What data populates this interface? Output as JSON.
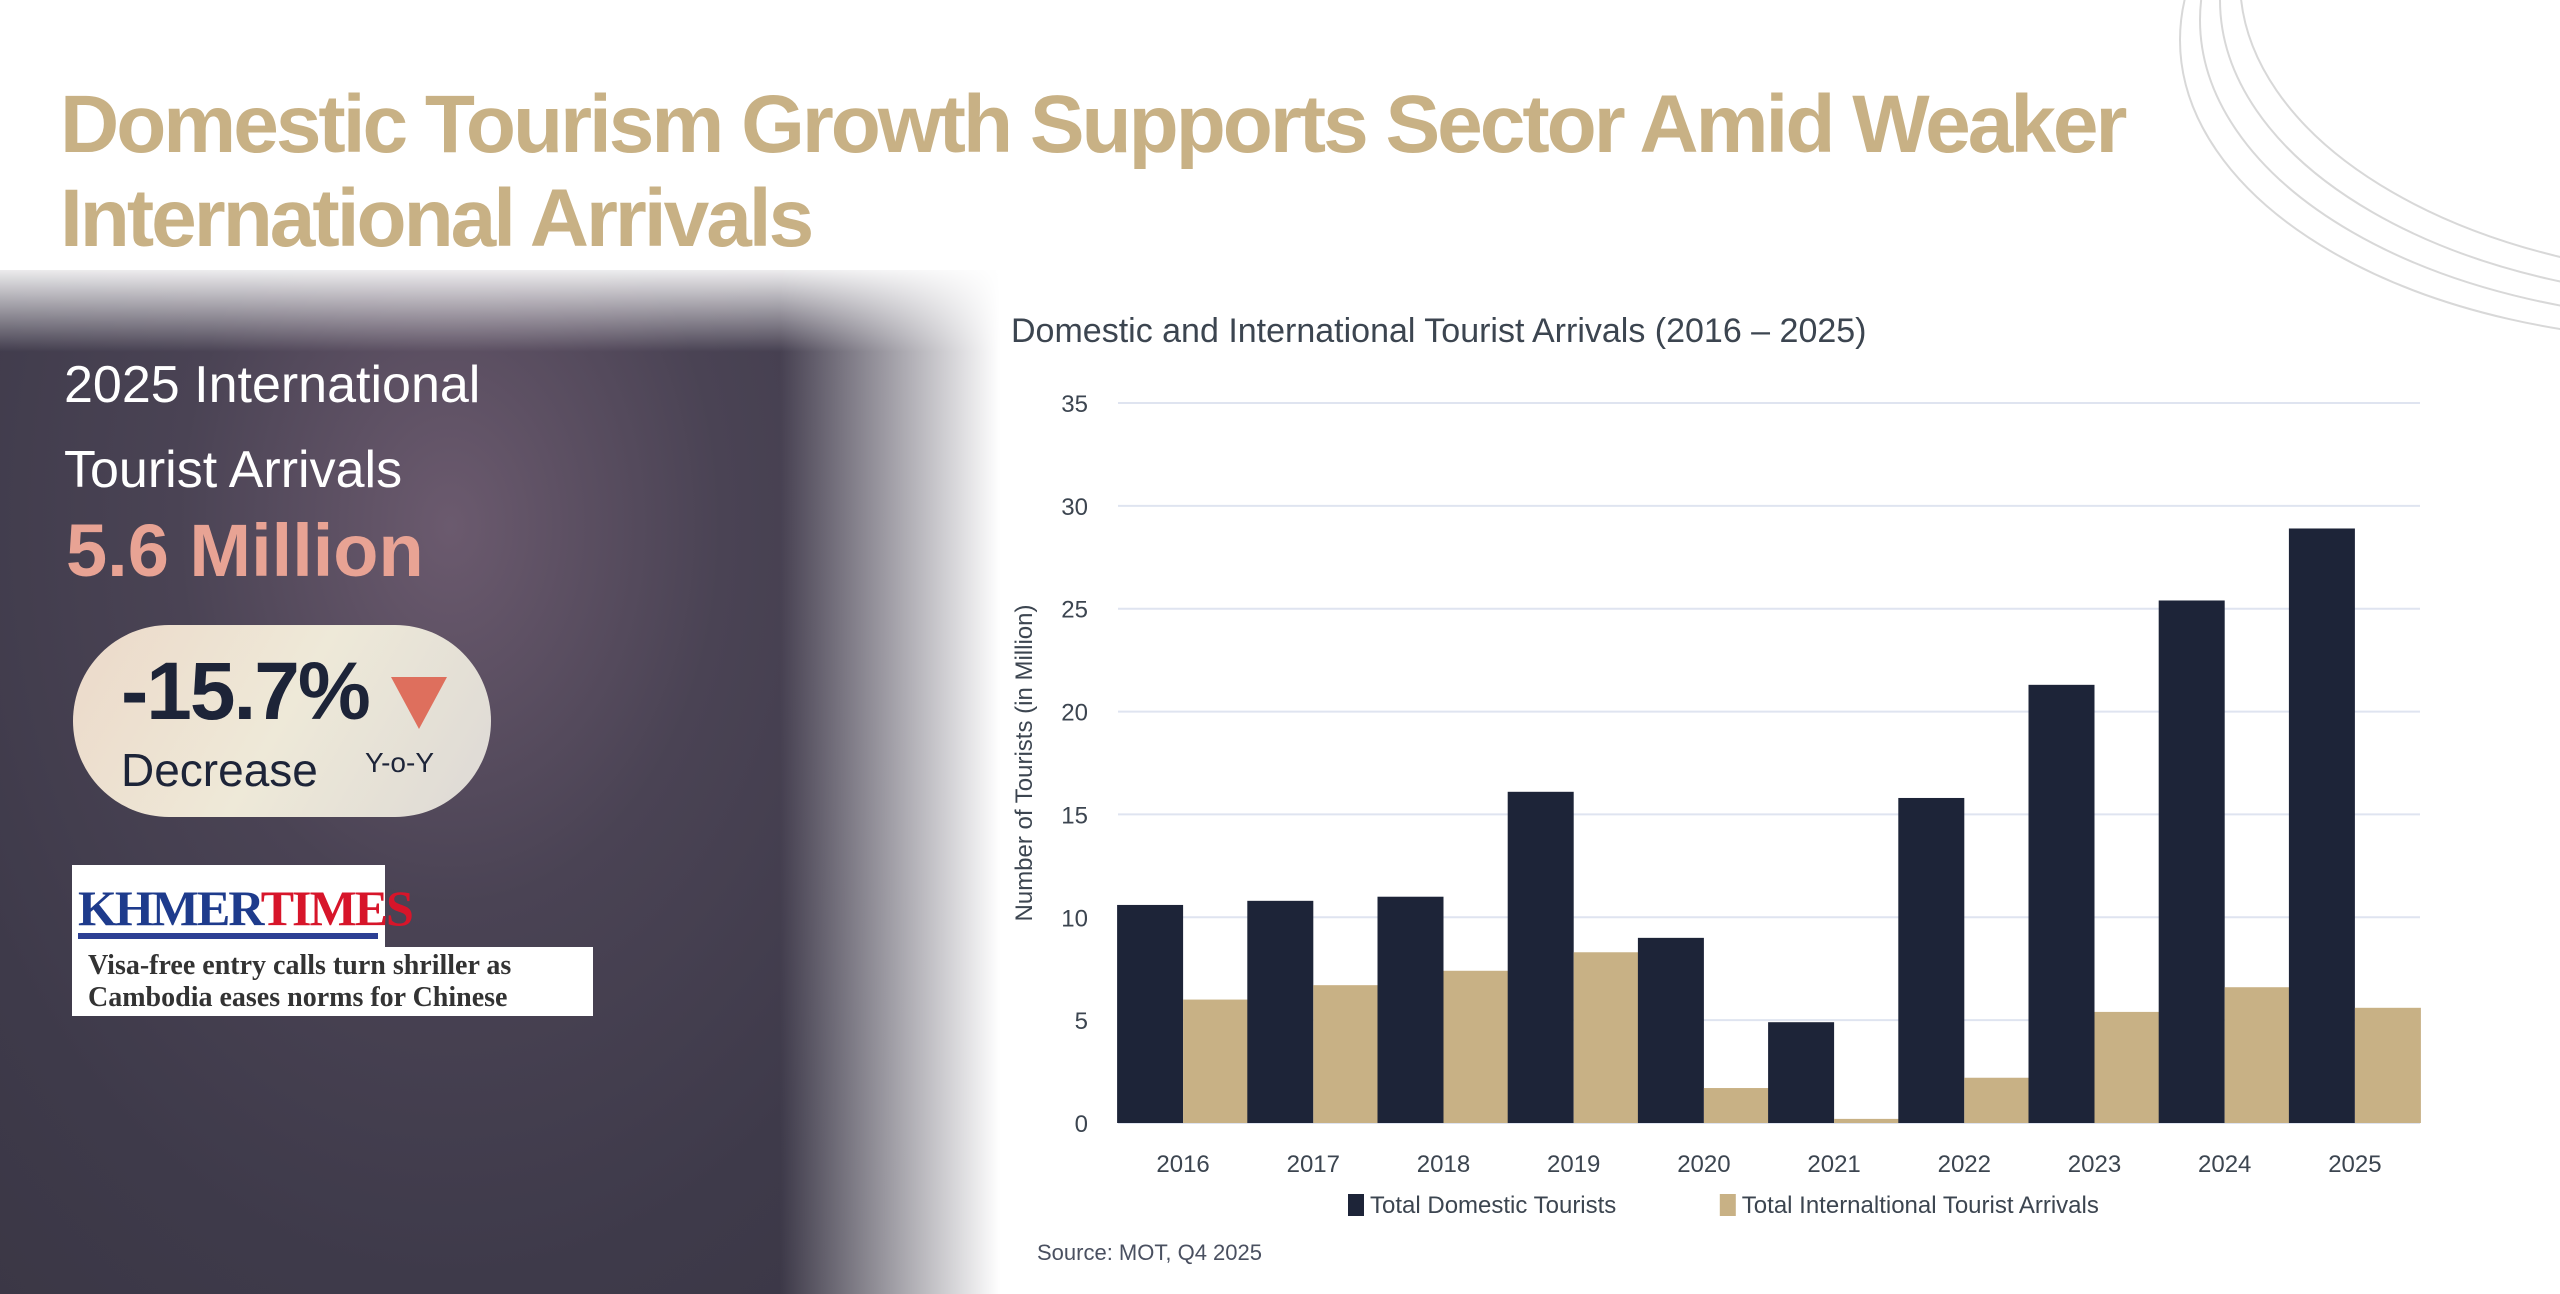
{
  "headline": "Domestic Tourism Growth Supports Sector Amid Weaker International Arrivals",
  "kpi": {
    "label_line1": "2025 International",
    "label_line2": "Tourist Arrivals",
    "value": "5.6 Million",
    "change": "-15.7%",
    "change_label": "Decrease",
    "period": "Y-o-Y",
    "trend_icon": "triangle-down-icon",
    "colors": {
      "value": "#e8a394",
      "down": "#de6f5d"
    }
  },
  "news": {
    "logo_part1": "KHMER",
    "logo_part2": "TIMES",
    "headline_line1": "Visa-free entry calls turn shriller as",
    "headline_line2": "Cambodia eases norms for Chinese"
  },
  "source": "Source: MOT, Q4 2025",
  "chart_data": {
    "type": "bar",
    "title": "Domestic and International Tourist Arrivals (2016 – 2025)",
    "xlabel": "",
    "ylabel": "Number of Tourists (in Million)",
    "ylim": [
      0,
      35
    ],
    "yticks": [
      0,
      5,
      10,
      15,
      20,
      25,
      30,
      35
    ],
    "grid": true,
    "legend_position": "bottom",
    "categories": [
      "2016",
      "2017",
      "2018",
      "2019",
      "2020",
      "2021",
      "2022",
      "2023",
      "2024",
      "2025"
    ],
    "series": [
      {
        "name": "Total Domestic Tourists",
        "color": "#1d2438",
        "values": [
          10.6,
          10.8,
          11.0,
          16.1,
          9.0,
          4.9,
          15.8,
          21.3,
          25.4,
          28.9
        ]
      },
      {
        "name": "Total Internaltional Tourist Arrivals",
        "color": "#c8b185",
        "values": [
          6.0,
          6.7,
          7.4,
          8.3,
          1.7,
          0.2,
          2.2,
          5.4,
          6.6,
          5.6
        ]
      }
    ]
  }
}
